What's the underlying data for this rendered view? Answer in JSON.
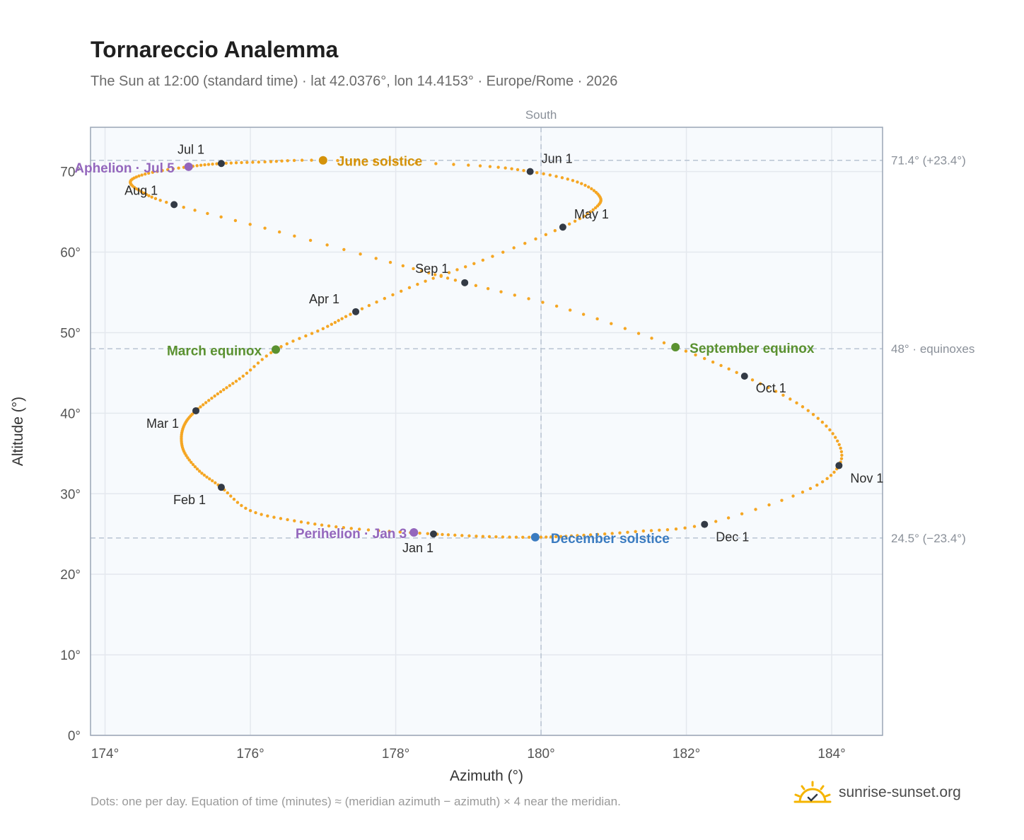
{
  "header": {
    "title": "Tornareccio Analemma",
    "subtitle": "The Sun at 12:00 (standard time) · lat 42.0376°, lon 14.4153° · Europe/Rome · 2026"
  },
  "footer": {
    "note": "Dots: one per day. Equation of time (minutes) ≈ (meridian azimuth − azimuth) × 4 near the meridian.",
    "brand": "sunrise-sunset.org",
    "brand_icon": "sun-horizon-icon"
  },
  "colors": {
    "curve": "#f5a623",
    "month_dot": "#333a45",
    "solstice_june": "#d4920a",
    "equinox": "#5a9130",
    "solstice_december": "#3a7bc0",
    "apsis": "#9467bd",
    "reference_line": "#b8c4d2",
    "plot_background": "#f7fafd"
  },
  "chart_data": {
    "type": "scatter",
    "title": "Tornareccio Analemma",
    "xlabel": "Azimuth (°)",
    "ylabel": "Altitude (°)",
    "xlim": [
      173.8,
      184.7
    ],
    "ylim": [
      0,
      75.5
    ],
    "grid": true,
    "x_ticks": [
      174,
      176,
      178,
      180,
      182,
      184
    ],
    "x_tick_labels": [
      "174°",
      "176°",
      "178°",
      "180°",
      "182°",
      "184°"
    ],
    "y_ticks": [
      0,
      10,
      20,
      30,
      40,
      50,
      60,
      70
    ],
    "y_tick_labels": [
      "0°",
      "10°",
      "20°",
      "30°",
      "40°",
      "50°",
      "60°",
      "70°"
    ],
    "reference_lines": {
      "vertical": {
        "x": 180,
        "label": "South"
      },
      "horizontal": [
        {
          "y": 71.4,
          "label": "71.4° (+23.4°)"
        },
        {
          "y": 48,
          "label": "48° · equinoxes"
        },
        {
          "y": 24.5,
          "label": "24.5° (−23.4°)"
        }
      ]
    },
    "month_points": [
      {
        "label": "Jan 1",
        "x": 178.52,
        "y": 25.0
      },
      {
        "label": "Feb 1",
        "x": 175.6,
        "y": 30.8
      },
      {
        "label": "Mar 1",
        "x": 175.25,
        "y": 40.3
      },
      {
        "label": "Apr 1",
        "x": 177.45,
        "y": 52.6
      },
      {
        "label": "May 1",
        "x": 180.3,
        "y": 63.1
      },
      {
        "label": "Jun 1",
        "x": 179.85,
        "y": 70.0
      },
      {
        "label": "Jul 1",
        "x": 175.6,
        "y": 71.0
      },
      {
        "label": "Aug 1",
        "x": 174.95,
        "y": 65.9
      },
      {
        "label": "Sep 1",
        "x": 178.95,
        "y": 56.2
      },
      {
        "label": "Oct 1",
        "x": 182.8,
        "y": 44.6
      },
      {
        "label": "Nov 1",
        "x": 184.1,
        "y": 33.5
      },
      {
        "label": "Dec 1",
        "x": 182.25,
        "y": 26.2
      }
    ],
    "events": [
      {
        "label": "Perihelion · Jan 3",
        "x": 178.25,
        "y": 25.2,
        "color": "#9467bd"
      },
      {
        "label": "March equinox",
        "x": 176.35,
        "y": 47.9,
        "color": "#5a9130"
      },
      {
        "label": "June solstice",
        "x": 177.0,
        "y": 71.4,
        "color": "#d4920a"
      },
      {
        "label": "Aphelion · Jul 5",
        "x": 175.15,
        "y": 70.6,
        "color": "#9467bd"
      },
      {
        "label": "September equinox",
        "x": 181.85,
        "y": 48.2,
        "color": "#5a9130"
      },
      {
        "label": "December solstice",
        "x": 179.92,
        "y": 24.6,
        "color": "#3a7bc0"
      }
    ],
    "daily_path": [
      [
        178.52,
        25.0
      ],
      [
        177.5,
        25.6
      ],
      [
        176.7,
        26.5
      ],
      [
        176.0,
        27.9
      ],
      [
        175.6,
        30.8
      ],
      [
        175.3,
        32.8
      ],
      [
        175.1,
        35.0
      ],
      [
        175.05,
        36.9
      ],
      [
        175.1,
        38.7
      ],
      [
        175.25,
        40.3
      ],
      [
        175.55,
        42.4
      ],
      [
        175.9,
        44.6
      ],
      [
        176.35,
        47.9
      ],
      [
        177.0,
        50.5
      ],
      [
        177.45,
        52.6
      ],
      [
        178.3,
        56.0
      ],
      [
        179.2,
        59.0
      ],
      [
        180.3,
        63.1
      ],
      [
        180.75,
        65.5
      ],
      [
        180.8,
        67.0
      ],
      [
        180.5,
        68.7
      ],
      [
        179.85,
        70.0
      ],
      [
        179.0,
        70.8
      ],
      [
        177.0,
        71.4
      ],
      [
        176.2,
        71.2
      ],
      [
        175.6,
        71.0
      ],
      [
        175.15,
        70.6
      ],
      [
        174.6,
        69.8
      ],
      [
        174.35,
        68.8
      ],
      [
        174.5,
        67.5
      ],
      [
        174.95,
        65.9
      ],
      [
        176.4,
        62.5
      ],
      [
        178.1,
        58.3
      ],
      [
        178.95,
        56.2
      ],
      [
        180.4,
        52.8
      ],
      [
        181.85,
        48.2
      ],
      [
        182.8,
        44.6
      ],
      [
        183.6,
        40.8
      ],
      [
        184.05,
        37.0
      ],
      [
        184.1,
        33.5
      ],
      [
        183.6,
        30.2
      ],
      [
        182.25,
        26.2
      ],
      [
        181.3,
        25.3
      ],
      [
        180.5,
        24.8
      ],
      [
        179.92,
        24.6
      ],
      [
        179.2,
        24.7
      ],
      [
        178.52,
        25.0
      ]
    ]
  }
}
